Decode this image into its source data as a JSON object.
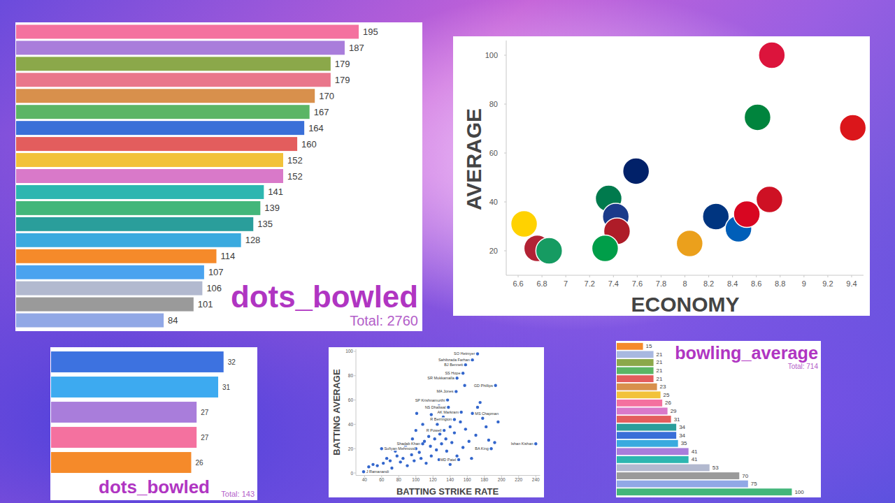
{
  "chart_data": [
    {
      "type": "bar",
      "orientation": "horizontal",
      "title": "dots_bowled",
      "subtitle": "Total: 2760",
      "categories": [
        null,
        null,
        null,
        null,
        null,
        null,
        null,
        null,
        null,
        null,
        null,
        null,
        null,
        null,
        null,
        null,
        null,
        null,
        null
      ],
      "values": [
        195,
        187,
        179,
        179,
        170,
        167,
        164,
        160,
        152,
        152,
        141,
        139,
        135,
        128,
        114,
        107,
        106,
        101,
        84
      ],
      "colors": [
        "#f4719f",
        "#a97ddb",
        "#8ba84a",
        "#e9768b",
        "#d8904c",
        "#5bb565",
        "#3a6fd8",
        "#e35d5d",
        "#f2c23a",
        "#d979c9",
        "#2db6b0",
        "#43b67a",
        "#2a9e9b",
        "#3aaadf",
        "#f58a2a",
        "#4aa3ef",
        "#b2b9cf",
        "#9a9a9a",
        "#91a8e6"
      ],
      "xlim": [
        0,
        230
      ],
      "xticks": [],
      "data_labels": true,
      "tick_labels": false,
      "grid": false
    },
    {
      "type": "scatter",
      "xlabel": "ECONOMY",
      "ylabel": "AVERAGE",
      "x": [
        8.73,
        8.61,
        9.41,
        7.59,
        7.36,
        7.42,
        7.43,
        7.33,
        6.65,
        6.76,
        6.86,
        8.04,
        8.26,
        8.45,
        8.52,
        8.71
      ],
      "values": [
        100,
        74.6,
        70.3,
        52.6,
        41.4,
        34,
        28,
        21,
        31,
        21,
        20,
        23,
        34,
        29,
        35,
        41
      ],
      "colors": [
        "#dc143c",
        "#00843d",
        "#db161b",
        "#012169",
        "#007a4d",
        "#1a3a8a",
        "#ae1c28",
        "#009e49",
        "#ffd200",
        "#b22234",
        "#169b62",
        "#eba01c",
        "#003580",
        "#005eb8",
        "#d80621",
        "#ce1124"
      ],
      "marker": "circle",
      "xlim": [
        6.5,
        9.5
      ],
      "xticks": [
        6.6,
        6.8,
        7,
        7.2,
        7.4,
        7.6,
        7.8,
        8,
        8.2,
        8.4,
        8.6,
        8.8,
        9,
        9.2,
        9.4
      ],
      "ylim": [
        10,
        106
      ],
      "yticks": [
        20,
        40,
        60,
        80,
        100
      ],
      "grid": false
    },
    {
      "type": "bar",
      "orientation": "horizontal",
      "title": "dots_bowled",
      "subtitle": "Total: 143",
      "categories": [
        null,
        null,
        null,
        null,
        null
      ],
      "values": [
        32,
        31,
        27,
        27,
        26
      ],
      "colors": [
        "#3d72e0",
        "#3daaf0",
        "#a97ddb",
        "#f4719f",
        "#f58a2a"
      ],
      "xlim": [
        0,
        38
      ],
      "xticks": [],
      "data_labels": true,
      "tick_labels": false,
      "grid": false
    },
    {
      "type": "scatter",
      "xlabel": "BATTING STRIKE RATE",
      "ylabel": "BATTING AVERAGE",
      "x": [
        172,
        166,
        158,
        155,
        148,
        193,
        147,
        137,
        138,
        153,
        166,
        145,
        133,
        108,
        60,
        240,
        188,
        150,
        39,
        157,
        172,
        101,
        45,
        50,
        55,
        62,
        66,
        70,
        72,
        78,
        82,
        85,
        90,
        95,
        98,
        100,
        104,
        106,
        110,
        112,
        115,
        117,
        118,
        120,
        122,
        124,
        125,
        127,
        128,
        130,
        132,
        135,
        136,
        140,
        142,
        145,
        148,
        152,
        155,
        158,
        162,
        165,
        170,
        175,
        178,
        182,
        185,
        192,
        196,
        118,
        108,
        100,
        96,
        127,
        140,
        88,
        76
      ],
      "values": [
        98,
        93,
        89,
        82,
        78,
        72,
        67,
        60,
        54,
        50,
        49,
        44,
        35,
        24,
        20,
        24,
        20,
        11,
        1,
        72,
        54,
        49,
        5,
        7,
        6,
        8,
        12,
        10,
        4,
        14,
        9,
        12,
        6,
        15,
        10,
        20,
        17,
        12,
        26,
        8,
        30,
        22,
        14,
        35,
        28,
        19,
        40,
        11,
        32,
        24,
        46,
        28,
        18,
        38,
        25,
        33,
        14,
        42,
        21,
        36,
        26,
        12,
        31,
        58,
        45,
        38,
        27,
        25,
        42,
        48,
        40,
        35,
        28,
        55,
        7,
        22,
        18
      ],
      "labels": [
        "SO Hetmyer",
        "Sahibzada Farhan",
        "BJ Bennett",
        "SS Hope",
        "SR Mukkamalla",
        "GD Phillips",
        "MA Jones",
        "SP Krishnamurthi",
        "NS Dhaliwal",
        "AK Markram",
        "MS Chapman",
        "R Berrington",
        "R Powell",
        "Shadab Khan",
        "Sufiyan Mehmood",
        "Ishan Kishan",
        "BA King",
        "MD Patel",
        "J Ramanandi",
        null,
        null,
        null,
        null,
        null,
        null,
        null,
        null,
        null,
        null,
        null,
        null,
        null,
        null,
        null,
        null,
        null,
        null,
        null,
        null,
        null,
        null,
        null,
        null,
        null,
        null,
        null,
        null,
        null,
        null,
        null,
        null,
        null,
        null,
        null,
        null,
        null,
        null,
        null,
        null,
        null,
        null,
        null,
        null,
        null,
        null,
        null,
        null,
        null,
        null,
        null,
        null,
        null,
        null,
        null,
        null,
        null,
        null
      ],
      "color": "#3366cc",
      "marker": "circle",
      "xlim": [
        30,
        245
      ],
      "xticks": [
        40,
        60,
        80,
        100,
        120,
        140,
        160,
        180,
        200,
        220,
        240
      ],
      "ylim": [
        -2,
        102
      ],
      "yticks": [
        0,
        20,
        40,
        60,
        80,
        100
      ],
      "grid": false
    },
    {
      "type": "bar",
      "orientation": "horizontal",
      "title": "bowling_average",
      "subtitle": "Total: 714",
      "categories": [
        null,
        null,
        null,
        null,
        null,
        null,
        null,
        null,
        null,
        null,
        null,
        null,
        null,
        null,
        null,
        null,
        null,
        null,
        null
      ],
      "values": [
        15,
        21,
        21,
        21,
        21,
        23,
        25,
        26,
        29,
        31,
        34,
        34,
        35,
        41,
        41,
        53,
        70,
        75,
        100
      ],
      "colors": [
        "#f58a2a",
        "#a8b8e0",
        "#8ba84a",
        "#5bb565",
        "#e35d5d",
        "#d8904c",
        "#f2c23a",
        "#f4719f",
        "#d979c9",
        "#e35d5d",
        "#2a9e9b",
        "#3a6fd8",
        "#3aaadf",
        "#a97ddb",
        "#2db6b0",
        "#b2b9cf",
        "#9a9a9a",
        "#91a8e6",
        "#43b67a"
      ],
      "xlim": [
        0,
        115
      ],
      "xticks": [],
      "data_labels": true,
      "tick_labels": false,
      "grid": false
    }
  ]
}
